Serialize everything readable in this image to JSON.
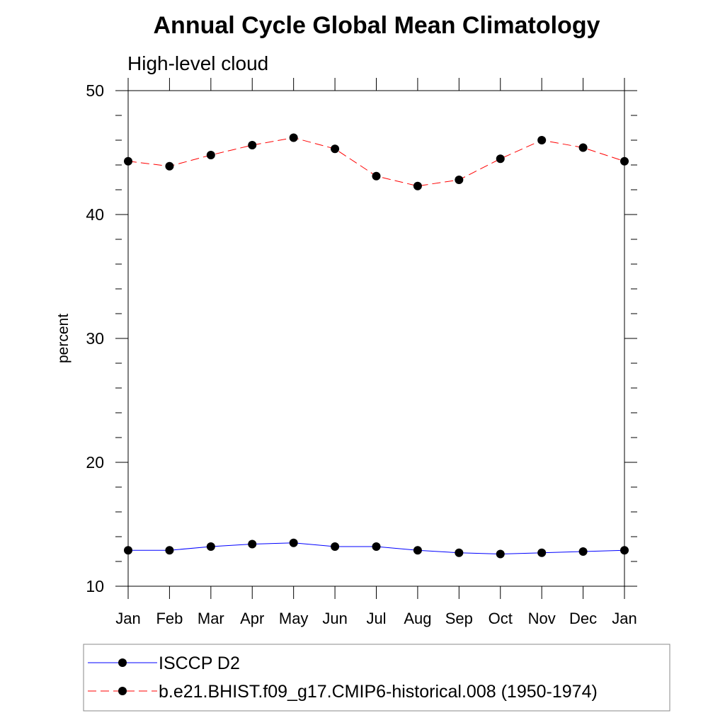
{
  "chart_data": {
    "type": "line",
    "title": "Annual Cycle Global Mean Climatology",
    "subtitle": "High-level cloud",
    "xlabel": "",
    "ylabel": "percent",
    "ylim": [
      10,
      50
    ],
    "yticks": [
      10,
      20,
      30,
      40,
      50
    ],
    "categories": [
      "Jan",
      "Feb",
      "Mar",
      "Apr",
      "May",
      "Jun",
      "Jul",
      "Aug",
      "Sep",
      "Oct",
      "Nov",
      "Dec",
      "Jan"
    ],
    "grid": false,
    "legend_position": "bottom",
    "series": [
      {
        "name": "ISCCP D2",
        "color": "#0000ff",
        "line_style": "solid",
        "marker": "filled-circle",
        "values": [
          12.9,
          12.9,
          13.2,
          13.4,
          13.5,
          13.2,
          13.2,
          12.9,
          12.7,
          12.6,
          12.7,
          12.8,
          12.9
        ]
      },
      {
        "name": "b.e21.BHIST.f09_g17.CMIP6-historical.008 (1950-1974)",
        "color": "#ff0000",
        "line_style": "dashed",
        "marker": "filled-circle",
        "values": [
          44.3,
          43.9,
          44.8,
          45.6,
          46.2,
          45.3,
          43.1,
          42.3,
          42.8,
          44.5,
          46.0,
          45.4,
          44.3
        ]
      }
    ]
  }
}
